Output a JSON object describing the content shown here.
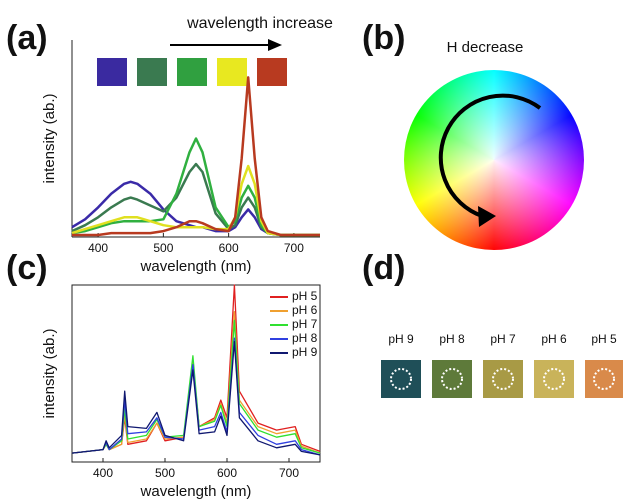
{
  "panel_labels": [
    "(a)",
    "(b)",
    "(c)",
    "(d)"
  ],
  "chart_data": [
    {
      "type": "line",
      "annotation": "wavelength increase",
      "x_label": "wavelength (nm)",
      "y_label": "intensity (ab.)",
      "x": [
        360,
        380,
        400,
        420,
        440,
        450,
        460,
        480,
        500,
        520,
        540,
        550,
        560,
        580,
        600,
        610,
        620,
        630,
        640,
        650,
        660,
        680,
        700,
        720,
        740
      ],
      "xlim": [
        360,
        740
      ],
      "xticks": [
        400,
        500,
        600,
        700
      ],
      "ylim": [
        0,
        1
      ],
      "series": [
        {
          "color": "#3a2aa8",
          "values": [
            0.05,
            0.09,
            0.15,
            0.22,
            0.27,
            0.28,
            0.27,
            0.22,
            0.14,
            0.08,
            0.06,
            0.05,
            0.05,
            0.03,
            0.03,
            0.05,
            0.1,
            0.14,
            0.1,
            0.04,
            0.02,
            0.01,
            0.01,
            0.01,
            0.01
          ]
        },
        {
          "color": "#3a7a50",
          "values": [
            0.03,
            0.06,
            0.1,
            0.15,
            0.19,
            0.2,
            0.19,
            0.16,
            0.13,
            0.2,
            0.33,
            0.37,
            0.33,
            0.12,
            0.04,
            0.06,
            0.15,
            0.2,
            0.15,
            0.05,
            0.02,
            0.01,
            0.01,
            0.01,
            0.01
          ]
        },
        {
          "color": "#30b040",
          "values": [
            0.02,
            0.03,
            0.05,
            0.07,
            0.08,
            0.08,
            0.08,
            0.08,
            0.09,
            0.22,
            0.43,
            0.5,
            0.43,
            0.15,
            0.05,
            0.08,
            0.2,
            0.26,
            0.2,
            0.06,
            0.02,
            0.01,
            0.01,
            0.01,
            0.01
          ]
        },
        {
          "color": "#e0e020",
          "values": [
            0.02,
            0.04,
            0.06,
            0.08,
            0.1,
            0.1,
            0.1,
            0.08,
            0.06,
            0.05,
            0.05,
            0.05,
            0.05,
            0.04,
            0.04,
            0.1,
            0.27,
            0.36,
            0.27,
            0.08,
            0.02,
            0.01,
            0.01,
            0.01,
            0.01
          ]
        },
        {
          "color": "#b83a20",
          "values": [
            0.01,
            0.01,
            0.01,
            0.02,
            0.02,
            0.02,
            0.02,
            0.02,
            0.03,
            0.05,
            0.08,
            0.08,
            0.07,
            0.04,
            0.03,
            0.1,
            0.4,
            0.81,
            0.4,
            0.1,
            0.03,
            0.01,
            0.01,
            0.01,
            0.01
          ]
        }
      ]
    },
    {
      "type": "line",
      "x_label": "wavelength (nm)",
      "y_label": "intensity (ab.)",
      "x": [
        350,
        400,
        405,
        410,
        430,
        435,
        440,
        470,
        487,
        500,
        530,
        545,
        555,
        580,
        590,
        600,
        612,
        620,
        650,
        680,
        710,
        720,
        750
      ],
      "xlim": [
        350,
        750
      ],
      "xticks": [
        400,
        500,
        600,
        700
      ],
      "ylim": [
        0,
        1
      ],
      "legend": "upper right",
      "series": [
        {
          "name": "pH 5",
          "color": "#e02020",
          "values": [
            0.05,
            0.07,
            0.1,
            0.07,
            0.1,
            0.25,
            0.1,
            0.12,
            0.22,
            0.12,
            0.14,
            0.55,
            0.2,
            0.25,
            0.35,
            0.25,
            1.0,
            0.4,
            0.22,
            0.18,
            0.2,
            0.1,
            0.06
          ]
        },
        {
          "name": "pH 6",
          "color": "#f0a030",
          "values": [
            0.05,
            0.07,
            0.1,
            0.07,
            0.1,
            0.27,
            0.11,
            0.13,
            0.22,
            0.13,
            0.14,
            0.57,
            0.2,
            0.24,
            0.33,
            0.22,
            0.85,
            0.35,
            0.2,
            0.16,
            0.18,
            0.09,
            0.05
          ]
        },
        {
          "name": "pH 7",
          "color": "#30e030",
          "values": [
            0.05,
            0.07,
            0.1,
            0.07,
            0.12,
            0.3,
            0.13,
            0.15,
            0.24,
            0.14,
            0.15,
            0.6,
            0.2,
            0.23,
            0.32,
            0.2,
            0.8,
            0.33,
            0.18,
            0.14,
            0.16,
            0.08,
            0.05
          ]
        },
        {
          "name": "pH 8",
          "color": "#3040e0",
          "values": [
            0.05,
            0.07,
            0.11,
            0.07,
            0.13,
            0.35,
            0.16,
            0.17,
            0.25,
            0.14,
            0.13,
            0.55,
            0.18,
            0.2,
            0.28,
            0.17,
            0.7,
            0.28,
            0.15,
            0.1,
            0.12,
            0.07,
            0.04
          ]
        },
        {
          "name": "pH 9",
          "color": "#101870",
          "values": [
            0.05,
            0.07,
            0.12,
            0.08,
            0.15,
            0.4,
            0.2,
            0.19,
            0.28,
            0.15,
            0.12,
            0.52,
            0.16,
            0.17,
            0.26,
            0.15,
            0.68,
            0.25,
            0.12,
            0.08,
            0.1,
            0.06,
            0.04
          ]
        }
      ]
    }
  ],
  "color_wheel": {
    "title": "H decrease"
  },
  "ph_samples": {
    "labels": [
      "pH 9",
      "pH 8",
      "pH 7",
      "pH 6",
      "pH 5"
    ]
  }
}
